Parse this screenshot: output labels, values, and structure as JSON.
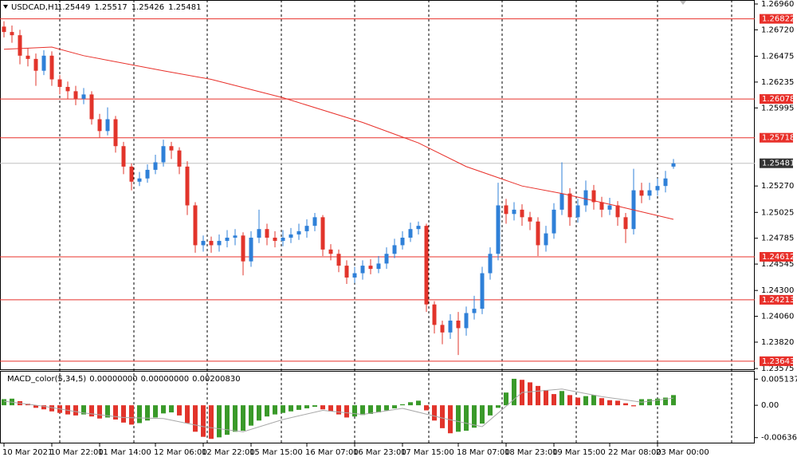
{
  "chart_data": {
    "type": "candlestick",
    "title": "USDCAD,H1",
    "quote": [
      1.25449,
      1.25517,
      1.25426,
      1.25481
    ],
    "up_color": "#2f80d8",
    "down_color": "#e2342b",
    "ylim": [
      1.23568,
      1.26997
    ],
    "yticks": [
      {
        "value": 1.2696,
        "label": "1.26960"
      },
      {
        "value": 1.2672,
        "label": "1.26720"
      },
      1.26475,
      1.26235,
      1.25995,
      {
        "value": 1.2527,
        "label": "1.25270"
      },
      1.25025,
      1.24785,
      1.24545,
      {
        "value": 1.243,
        "label": "1.24300"
      },
      {
        "value": 1.2406,
        "label": "1.24060"
      },
      {
        "value": 1.2382,
        "label": "1.23820"
      },
      1.23575
    ],
    "levels": [
      1.26822,
      1.26078,
      1.25718,
      1.24612,
      1.24213,
      1.23643
    ],
    "level_color": "#e8302a",
    "current": 1.25481,
    "xlim": [
      0,
      84
    ],
    "xticks": [
      {
        "value": 0,
        "label": "10 Mar 2021"
      },
      {
        "value": 6,
        "label": "10 Mar 22:00"
      },
      {
        "value": 12,
        "label": "11 Mar 14:00"
      },
      {
        "value": 19,
        "label": "12 Mar 06:00"
      },
      {
        "value": 25,
        "label": "12 Mar 22:00"
      },
      {
        "value": 31,
        "label": "15 Mar 15:00"
      },
      {
        "value": 38,
        "label": "16 Mar 07:00"
      },
      {
        "value": 44,
        "label": "16 Mar 23:00"
      },
      {
        "value": 50,
        "label": "17 Mar 15:00"
      },
      {
        "value": 57,
        "label": "18 Mar 07:00"
      },
      {
        "value": 63,
        "label": "18 Mar 23:00"
      },
      {
        "value": 69,
        "label": "19 Mar 15:00"
      },
      {
        "value": 76,
        "label": "22 Mar 08:00"
      },
      {
        "value": 82,
        "label": "23 Mar 00:00"
      }
    ],
    "candles": [
      [
        1.2675,
        1.268,
        1.2665,
        1.267
      ],
      [
        1.267,
        1.2676,
        1.266,
        1.2667
      ],
      [
        1.2667,
        1.2672,
        1.264,
        1.2648
      ],
      [
        1.2648,
        1.2655,
        1.2638,
        1.2645
      ],
      [
        1.2645,
        1.265,
        1.262,
        1.2634
      ],
      [
        1.2634,
        1.2653,
        1.263,
        1.2648
      ],
      [
        1.2648,
        1.2652,
        1.262,
        1.2626
      ],
      [
        1.2626,
        1.263,
        1.2612,
        1.2619
      ],
      [
        1.2619,
        1.2624,
        1.2608,
        1.2615
      ],
      [
        1.2615,
        1.262,
        1.2602,
        1.2608
      ],
      [
        1.2608,
        1.2618,
        1.2603,
        1.2612
      ],
      [
        1.2612,
        1.2615,
        1.2584,
        1.2589
      ],
      [
        1.2589,
        1.2594,
        1.2572,
        1.2578
      ],
      [
        1.2578,
        1.26,
        1.2574,
        1.2589
      ],
      [
        1.2589,
        1.2592,
        1.2558,
        1.2564
      ],
      [
        1.2564,
        1.2568,
        1.2538,
        1.2545
      ],
      [
        1.2545,
        1.2548,
        1.2523,
        1.2531
      ],
      [
        1.2531,
        1.254,
        1.2527,
        1.2534
      ],
      [
        1.2534,
        1.2547,
        1.253,
        1.2542
      ],
      [
        1.2542,
        1.2556,
        1.2538,
        1.2549
      ],
      [
        1.2549,
        1.257,
        1.2545,
        1.2564
      ],
      [
        1.2564,
        1.2568,
        1.2552,
        1.256
      ],
      [
        1.256,
        1.2563,
        1.2538,
        1.2545
      ],
      [
        1.2545,
        1.255,
        1.25,
        1.2509
      ],
      [
        1.2509,
        1.2512,
        1.2465,
        1.2472
      ],
      [
        1.2472,
        1.2481,
        1.2466,
        1.2476
      ],
      [
        1.2476,
        1.248,
        1.2465,
        1.2472
      ],
      [
        1.2472,
        1.2482,
        1.2466,
        1.2476
      ],
      [
        1.2476,
        1.2486,
        1.247,
        1.2479
      ],
      [
        1.2479,
        1.2487,
        1.2472,
        1.2481
      ],
      [
        1.2481,
        1.2484,
        1.2444,
        1.2457
      ],
      [
        1.2457,
        1.2485,
        1.2452,
        1.2479
      ],
      [
        1.2479,
        1.2505,
        1.2474,
        1.2487
      ],
      [
        1.2487,
        1.2492,
        1.2472,
        1.2479
      ],
      [
        1.2479,
        1.2485,
        1.247,
        1.2476
      ],
      [
        1.2476,
        1.2486,
        1.2471,
        1.2479
      ],
      [
        1.2479,
        1.2488,
        1.2474,
        1.2482
      ],
      [
        1.2482,
        1.2492,
        1.2477,
        1.2485
      ],
      [
        1.2485,
        1.2496,
        1.2479,
        1.249
      ],
      [
        1.249,
        1.2502,
        1.2485,
        1.2498
      ],
      [
        1.2498,
        1.25,
        1.2462,
        1.2468
      ],
      [
        1.2468,
        1.2473,
        1.2458,
        1.2464
      ],
      [
        1.2464,
        1.2468,
        1.2447,
        1.2453
      ],
      [
        1.2453,
        1.2458,
        1.2436,
        1.2442
      ],
      [
        1.2442,
        1.2452,
        1.2437,
        1.2446
      ],
      [
        1.2446,
        1.2458,
        1.244,
        1.2453
      ],
      [
        1.2453,
        1.2459,
        1.2445,
        1.245
      ],
      [
        1.245,
        1.2462,
        1.2446,
        1.2455
      ],
      [
        1.2455,
        1.247,
        1.245,
        1.2464
      ],
      [
        1.2464,
        1.2478,
        1.246,
        1.2472
      ],
      [
        1.2472,
        1.2485,
        1.2468,
        1.2479
      ],
      [
        1.2479,
        1.2493,
        1.2475,
        1.2487
      ],
      [
        1.2487,
        1.2494,
        1.2482,
        1.249
      ],
      [
        1.249,
        1.2492,
        1.241,
        1.2417
      ],
      [
        1.2417,
        1.242,
        1.239,
        1.2398
      ],
      [
        1.2398,
        1.2402,
        1.238,
        1.2391
      ],
      [
        1.2391,
        1.2408,
        1.2385,
        1.2402
      ],
      [
        1.2402,
        1.241,
        1.237,
        1.2395
      ],
      [
        1.2395,
        1.2415,
        1.2388,
        1.2409
      ],
      [
        1.2409,
        1.2425,
        1.2403,
        1.2413
      ],
      [
        1.2413,
        1.2452,
        1.2408,
        1.2446
      ],
      [
        1.2446,
        1.247,
        1.244,
        1.2464
      ],
      [
        1.2464,
        1.253,
        1.2458,
        1.2509
      ],
      [
        1.2509,
        1.2515,
        1.2492,
        1.2501
      ],
      [
        1.2501,
        1.2512,
        1.2495,
        1.2505
      ],
      [
        1.2505,
        1.251,
        1.249,
        1.2498
      ],
      [
        1.2498,
        1.2503,
        1.2486,
        1.2494
      ],
      [
        1.2494,
        1.2498,
        1.2462,
        1.2472
      ],
      [
        1.2472,
        1.249,
        1.2466,
        1.2483
      ],
      [
        1.2483,
        1.2511,
        1.2478,
        1.2505
      ],
      [
        1.2505,
        1.2549,
        1.25,
        1.252
      ],
      [
        1.252,
        1.2525,
        1.249,
        1.2498
      ],
      [
        1.2498,
        1.2515,
        1.2493,
        1.2509
      ],
      [
        1.2509,
        1.2532,
        1.2503,
        1.2523
      ],
      [
        1.2523,
        1.2528,
        1.2505,
        1.2512
      ],
      [
        1.2512,
        1.2517,
        1.2498,
        1.2505
      ],
      [
        1.2505,
        1.2516,
        1.25,
        1.2509
      ],
      [
        1.2509,
        1.2513,
        1.249,
        1.2498
      ],
      [
        1.2498,
        1.2502,
        1.2474,
        1.2487
      ],
      [
        1.2487,
        1.2543,
        1.2482,
        1.2523
      ],
      [
        1.2523,
        1.253,
        1.2511,
        1.2518
      ],
      [
        1.2518,
        1.253,
        1.2514,
        1.2523
      ],
      [
        1.2523,
        1.2534,
        1.2518,
        1.2527
      ],
      [
        1.2527,
        1.2541,
        1.2521,
        1.2534
      ],
      [
        1.2545,
        1.2552,
        1.2543,
        1.2548
      ]
    ],
    "ma": {
      "color": "#e8302a",
      "x": [
        0,
        6,
        10,
        20,
        26,
        35,
        45,
        52,
        58,
        65,
        70,
        76,
        84
      ],
      "values": [
        1.2654,
        1.2656,
        1.2648,
        1.2634,
        1.2626,
        1.2609,
        1.2586,
        1.2567,
        1.2545,
        1.2527,
        1.252,
        1.251,
        1.2496
      ]
    },
    "macd": {
      "title": "MACD_color(5,34,5)",
      "readout": [
        "0.00000000",
        "0.00000000",
        "0.00200830"
      ],
      "ylim": [
        -0.0075,
        0.0066
      ],
      "yticks": [
        0.0051371,
        {
          "value": 0,
          "label": "0.00"
        },
        {
          "value": -0.00636,
          "label": "-0.006360"
        }
      ],
      "rise_color": "#3a9a2a",
      "fall_color": "#e2342b",
      "values": [
        0.0012,
        0.0013,
        0.0008,
        0.0003,
        -0.0005,
        -0.0008,
        -0.0012,
        -0.0015,
        -0.0018,
        -0.002,
        -0.0018,
        -0.0022,
        -0.0026,
        -0.0024,
        -0.0028,
        -0.0034,
        -0.0038,
        -0.0035,
        -0.003,
        -0.0024,
        -0.0016,
        -0.0014,
        -0.002,
        -0.0035,
        -0.0052,
        -0.0062,
        -0.0066,
        -0.0063,
        -0.0058,
        -0.0052,
        -0.005,
        -0.004,
        -0.003,
        -0.0022,
        -0.0018,
        -0.0015,
        -0.0012,
        -0.0009,
        -0.0006,
        -0.0003,
        -0.0008,
        -0.0012,
        -0.0018,
        -0.0024,
        -0.0022,
        -0.0019,
        -0.0017,
        -0.0014,
        -0.001,
        -0.0006,
        0.0002,
        0.0006,
        0.0009,
        -0.001,
        -0.003,
        -0.0045,
        -0.0055,
        -0.0052,
        -0.005,
        -0.0044,
        -0.0036,
        -0.002,
        -0.0005,
        0.0025,
        0.0052,
        0.005,
        0.0045,
        0.0038,
        0.003,
        0.0022,
        0.0028,
        0.002,
        0.0015,
        0.0018,
        0.002,
        0.0014,
        0.001,
        0.0009,
        0.0004,
        -0.0002,
        0.0012,
        0.0012,
        0.0013,
        0.0015,
        0.002
      ],
      "signal": {
        "color": "#a8a8a8",
        "x": [
          0,
          5,
          10,
          15,
          20,
          25,
          30,
          35,
          40,
          45,
          50,
          55,
          60,
          65,
          70,
          75,
          80,
          84
        ],
        "values": [
          0.0008,
          -0.0002,
          -0.0015,
          -0.0024,
          -0.0026,
          -0.0042,
          -0.0052,
          -0.0028,
          -0.001,
          -0.0018,
          -0.0006,
          -0.0025,
          -0.0042,
          0.0025,
          0.0032,
          0.0017,
          0.0006,
          0.0014
        ]
      }
    }
  }
}
